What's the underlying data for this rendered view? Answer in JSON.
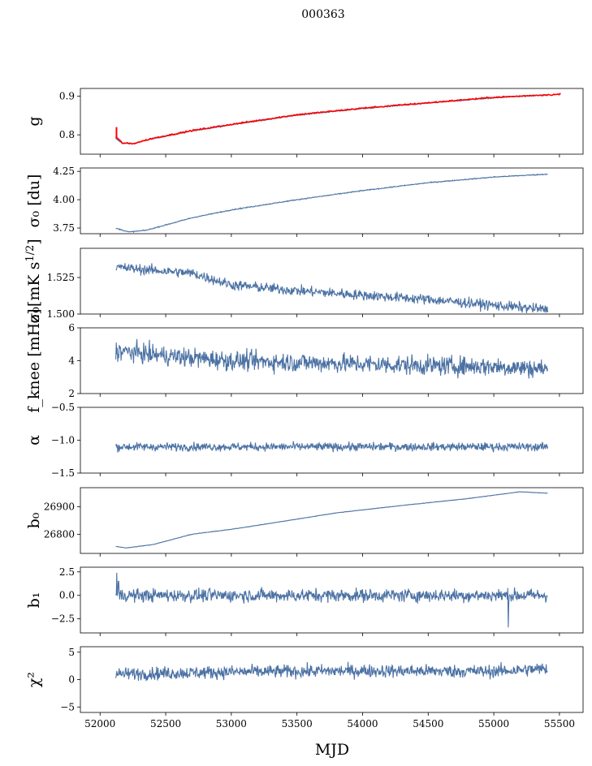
{
  "title": "000363",
  "colors": {
    "series": "#4c72a4",
    "fit": "#ff0000",
    "axes": "#000000"
  },
  "chart_data": {
    "type": "line",
    "shared_x": {
      "label": "MJD",
      "range": [
        51850,
        55680
      ],
      "ticks": [
        52000,
        52500,
        53000,
        53500,
        54000,
        54500,
        55000,
        55500
      ],
      "tick_labels": [
        "52000",
        "52500",
        "53000",
        "53500",
        "54000",
        "54500",
        "55000",
        "55500"
      ],
      "data_start": 52120,
      "data_end": 55410
    },
    "panels": [
      {
        "ylabel": "g",
        "ylim": [
          0.75,
          0.92
        ],
        "yticks": [
          0.8,
          0.9
        ],
        "ytick_labels": [
          "0.8",
          "0.9"
        ],
        "series_points": [
          [
            52120,
            0.79
          ],
          [
            52170,
            0.778
          ],
          [
            52250,
            0.777
          ],
          [
            52400,
            0.79
          ],
          [
            52700,
            0.81
          ],
          [
            53000,
            0.826
          ],
          [
            53500,
            0.851
          ],
          [
            54000,
            0.868
          ],
          [
            54500,
            0.882
          ],
          [
            55000,
            0.896
          ],
          [
            55420,
            0.904
          ]
        ],
        "noise": 0.001,
        "overlay_points": [
          [
            52120,
            0.795
          ],
          [
            52170,
            0.779
          ],
          [
            52250,
            0.777
          ],
          [
            52400,
            0.791
          ],
          [
            52700,
            0.811
          ],
          [
            53000,
            0.827
          ],
          [
            53500,
            0.852
          ],
          [
            54000,
            0.869
          ],
          [
            54500,
            0.883
          ],
          [
            55000,
            0.897
          ],
          [
            55510,
            0.905
          ]
        ],
        "overlay_spike": [
          52125,
          0.82
        ]
      },
      {
        "ylabel": "σ₀ [du]",
        "ylim": [
          3.7,
          4.28
        ],
        "yticks": [
          3.75,
          4.0,
          4.25
        ],
        "ytick_labels": [
          "3.75",
          "4.00",
          "4.25"
        ],
        "series_points": [
          [
            52130,
            3.745
          ],
          [
            52220,
            3.715
          ],
          [
            52350,
            3.73
          ],
          [
            52700,
            3.84
          ],
          [
            53000,
            3.91
          ],
          [
            53500,
            4.0
          ],
          [
            54000,
            4.08
          ],
          [
            54500,
            4.15
          ],
          [
            55000,
            4.2
          ],
          [
            55400,
            4.225
          ]
        ],
        "noise": 0.003
      },
      {
        "ylabel": "σ₀[mK s^1/2]",
        "ylim": [
          1.5,
          1.545
        ],
        "yticks": [
          1.5,
          1.525
        ],
        "ytick_labels": [
          "1.500",
          "1.525"
        ],
        "series_points": [
          [
            52130,
            1.532
          ],
          [
            52400,
            1.53
          ],
          [
            52700,
            1.528
          ],
          [
            53000,
            1.52
          ],
          [
            53500,
            1.516
          ],
          [
            54000,
            1.513
          ],
          [
            54500,
            1.51
          ],
          [
            55000,
            1.506
          ],
          [
            55410,
            1.503
          ]
        ],
        "noise": 0.0025
      },
      {
        "ylabel": "f_knee [mHz]",
        "ylim": [
          2,
          6
        ],
        "yticks": [
          2,
          4,
          6
        ],
        "ytick_labels": [
          "2",
          "4",
          "6"
        ],
        "series_points": [
          [
            52130,
            4.6
          ],
          [
            52500,
            4.3
          ],
          [
            53000,
            4.0
          ],
          [
            53500,
            3.9
          ],
          [
            54000,
            3.8
          ],
          [
            54500,
            3.7
          ],
          [
            55000,
            3.65
          ],
          [
            55410,
            3.5
          ]
        ],
        "noise": 0.42
      },
      {
        "ylabel": "α",
        "ylim": [
          -1.5,
          -0.5
        ],
        "yticks": [
          -1.5,
          -1.0,
          -0.5
        ],
        "ytick_labels": [
          "−1.5",
          "−1.0",
          "−0.5"
        ],
        "series_points": [
          [
            52130,
            -1.1
          ],
          [
            55410,
            -1.1
          ]
        ],
        "noise": 0.045
      },
      {
        "ylabel": "b₀",
        "ylim": [
          26730,
          26970
        ],
        "yticks": [
          26800,
          26900
        ],
        "ytick_labels": [
          "26800",
          "26900"
        ],
        "series_points": [
          [
            52130,
            26755
          ],
          [
            52200,
            26750
          ],
          [
            52400,
            26762
          ],
          [
            52700,
            26800
          ],
          [
            53000,
            26818
          ],
          [
            53300,
            26840
          ],
          [
            53800,
            26878
          ],
          [
            54300,
            26905
          ],
          [
            54800,
            26930
          ],
          [
            55200,
            26955
          ],
          [
            55400,
            26950
          ]
        ],
        "noise": 0.6
      },
      {
        "ylabel": "b₁",
        "ylim": [
          -4,
          3
        ],
        "yticks": [
          -2.5,
          0.0,
          2.5
        ],
        "ytick_labels": [
          "−2.5",
          "0.0",
          "2.5"
        ],
        "series_points": [
          [
            52130,
            0.0
          ],
          [
            55410,
            0.0
          ]
        ],
        "noise": 0.5,
        "events": [
          [
            52128,
            2.4
          ],
          [
            52140,
            1.5
          ],
          [
            55110,
            -3.4
          ]
        ]
      },
      {
        "ylabel": "χ²",
        "ylim": [
          -6,
          6
        ],
        "yticks": [
          -5,
          0,
          5
        ],
        "ytick_labels": [
          "−5",
          "0",
          "5"
        ],
        "series_points": [
          [
            52130,
            1.0
          ],
          [
            53000,
            1.4
          ],
          [
            54000,
            1.6
          ],
          [
            55000,
            1.5
          ],
          [
            55410,
            2.0
          ]
        ],
        "noise": 0.85
      }
    ]
  }
}
